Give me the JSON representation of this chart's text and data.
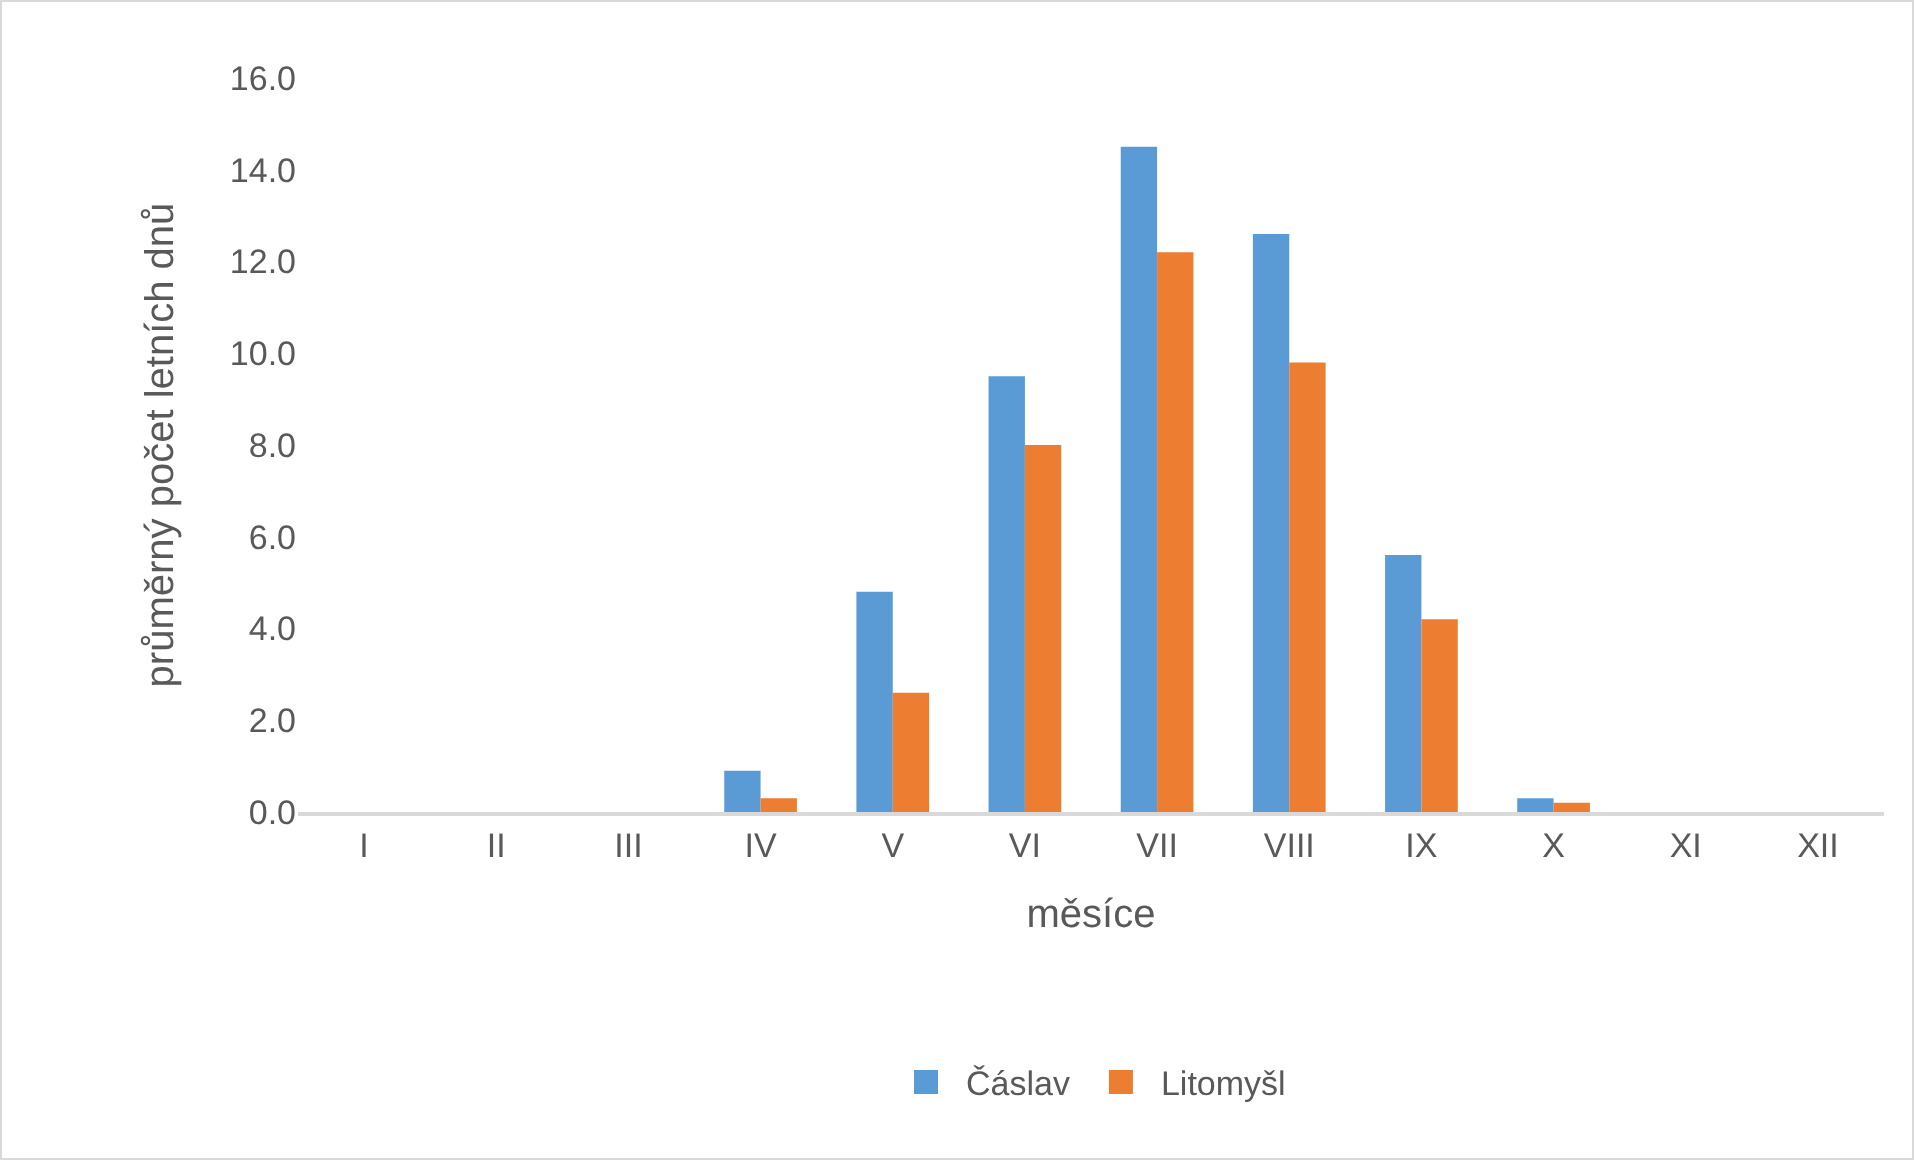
{
  "chart_data": {
    "type": "bar",
    "xlabel": "měsíce",
    "ylabel": "průměrný počet letních dnů",
    "categories": [
      "I",
      "II",
      "III",
      "IV",
      "V",
      "VI",
      "VII",
      "VIII",
      "IX",
      "X",
      "XI",
      "XII"
    ],
    "series": [
      {
        "name": "Čáslav",
        "color": "#5b9bd5",
        "values": [
          0,
          0,
          0,
          0.9,
          4.8,
          9.5,
          14.5,
          12.6,
          5.6,
          0.3,
          0,
          0
        ]
      },
      {
        "name": "Litomyšl",
        "color": "#ed7d31",
        "values": [
          0,
          0,
          0,
          0.3,
          2.6,
          8.0,
          12.2,
          9.8,
          4.2,
          0.2,
          0,
          0
        ]
      }
    ],
    "ylim": [
      0,
      16
    ],
    "yticks": [
      {
        "value": 0,
        "label": "0.0"
      },
      {
        "value": 2,
        "label": "2.0"
      },
      {
        "value": 4,
        "label": "4.0"
      },
      {
        "value": 6,
        "label": "6.0"
      },
      {
        "value": 8,
        "label": "8.0"
      },
      {
        "value": 10,
        "label": "10.0"
      },
      {
        "value": 12,
        "label": "12.0"
      },
      {
        "value": 14,
        "label": "14.0"
      },
      {
        "value": 16,
        "label": "16.0"
      }
    ],
    "grid": false,
    "legend": "bottom"
  }
}
